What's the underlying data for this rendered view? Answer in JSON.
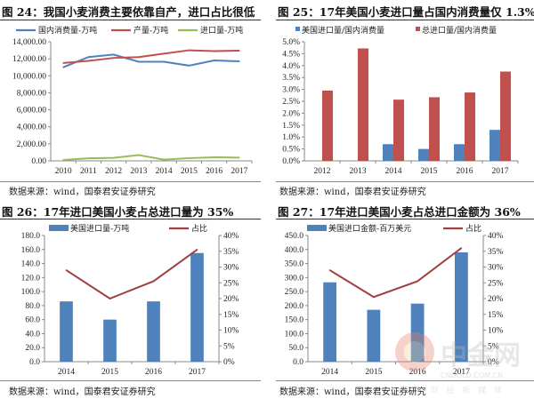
{
  "chart_data": [
    {
      "type": "line",
      "title": "图 24：我国小麦消费主要依靠自产，进口占比很低",
      "source": "数据来源：wind，国泰君安证券研究",
      "categories": [
        "2010",
        "2011",
        "2012",
        "2013",
        "2014",
        "2015",
        "2016",
        "2017"
      ],
      "ylim": [
        0,
        14000
      ],
      "yticks": [
        "0.00",
        "2,000.00",
        "4,000.00",
        "6,000.00",
        "8,000.00",
        "10,000.00",
        "12,000.00",
        "14,000.00"
      ],
      "legend_position": "top",
      "grid": false,
      "series": [
        {
          "name": "国内消费量-万吨",
          "color": "#4f81bd",
          "values": [
            11000,
            12200,
            12500,
            11650,
            11650,
            11200,
            11800,
            11700
          ]
        },
        {
          "name": "产量-万吨",
          "color": "#c0504d",
          "values": [
            11500,
            11750,
            12100,
            12200,
            12600,
            13000,
            12900,
            12950
          ]
        },
        {
          "name": "进口量-万吨",
          "color": "#9bbb59",
          "values": [
            100,
            300,
            350,
            680,
            150,
            320,
            420,
            380
          ]
        }
      ]
    },
    {
      "type": "bar",
      "title": "图 25：17年美国小麦进口量占国内消费量仅 1.3%",
      "source": "数据来源：wind，国泰君安证券研究",
      "categories": [
        "2012",
        "2013",
        "2014",
        "2015",
        "2016",
        "2017"
      ],
      "ylim": [
        0,
        5.0
      ],
      "yticks": [
        "0.0%",
        "0.5%",
        "1.0%",
        "1.5%",
        "2.0%",
        "2.5%",
        "3.0%",
        "3.5%",
        "4.0%",
        "4.5%",
        "5.0%"
      ],
      "legend_position": "top",
      "grid": false,
      "series": [
        {
          "name": "美国进口量/国内消费量",
          "color": "#4f81bd",
          "values": [
            null,
            null,
            0.7,
            0.5,
            0.7,
            1.3
          ]
        },
        {
          "name": "总进口量/国内消费量",
          "color": "#c0504d",
          "values": [
            2.95,
            4.72,
            2.57,
            2.67,
            2.87,
            3.75
          ]
        }
      ]
    },
    {
      "type": "bar+line",
      "title": "图 26：17年进口美国小麦占总进口量为 35%",
      "source": "数据来源：wind，国泰君安证券研究",
      "categories": [
        "2014",
        "2015",
        "2016",
        "2017"
      ],
      "ylim": [
        0,
        180
      ],
      "yticks": [
        "0.0",
        "20.0",
        "40.0",
        "60.0",
        "80.0",
        "100.0",
        "120.0",
        "140.0",
        "160.0",
        "180.0"
      ],
      "y2lim": [
        0,
        40
      ],
      "y2ticks": [
        "0%",
        "5%",
        "10%",
        "15%",
        "20%",
        "25%",
        "30%",
        "35%",
        "40%"
      ],
      "legend_position": "top",
      "grid": false,
      "series": [
        {
          "name": "美国进口量-万吨",
          "color": "#4f81bd",
          "kind": "bar",
          "values": [
            86,
            60,
            86,
            155
          ]
        },
        {
          "name": "占比",
          "color": "#a0403f",
          "kind": "line",
          "axis": "right",
          "values": [
            29,
            20,
            25.5,
            35.5
          ]
        }
      ]
    },
    {
      "type": "bar+line",
      "title": "图 27：17年进口美国小麦占总进口金额为 36%",
      "source": "数据来源：wind，国泰君安证券研究",
      "categories": [
        "2014",
        "2015",
        "2016",
        "2017"
      ],
      "ylim": [
        0,
        450
      ],
      "yticks": [
        "0.0",
        "50.0",
        "100.0",
        "150.0",
        "200.0",
        "250.0",
        "300.0",
        "350.0",
        "400.0",
        "450.0"
      ],
      "y2lim": [
        0,
        40
      ],
      "y2ticks": [
        "0%",
        "5%",
        "10%",
        "15%",
        "20%",
        "25%",
        "30%",
        "35%",
        "40%"
      ],
      "legend_position": "top",
      "grid": false,
      "series": [
        {
          "name": "美国进口金额-百万美元",
          "color": "#4f81bd",
          "kind": "bar",
          "values": [
            283,
            185,
            207,
            390
          ]
        },
        {
          "name": "占比",
          "color": "#a0403f",
          "kind": "line",
          "axis": "right",
          "values": [
            29,
            20.5,
            25.5,
            36
          ]
        }
      ]
    }
  ],
  "watermark": {
    "logo_text": "中金网",
    "url_text": "CNGOLD.COM.CN",
    "tagline": "中 文 财 经 新 媒 体"
  }
}
